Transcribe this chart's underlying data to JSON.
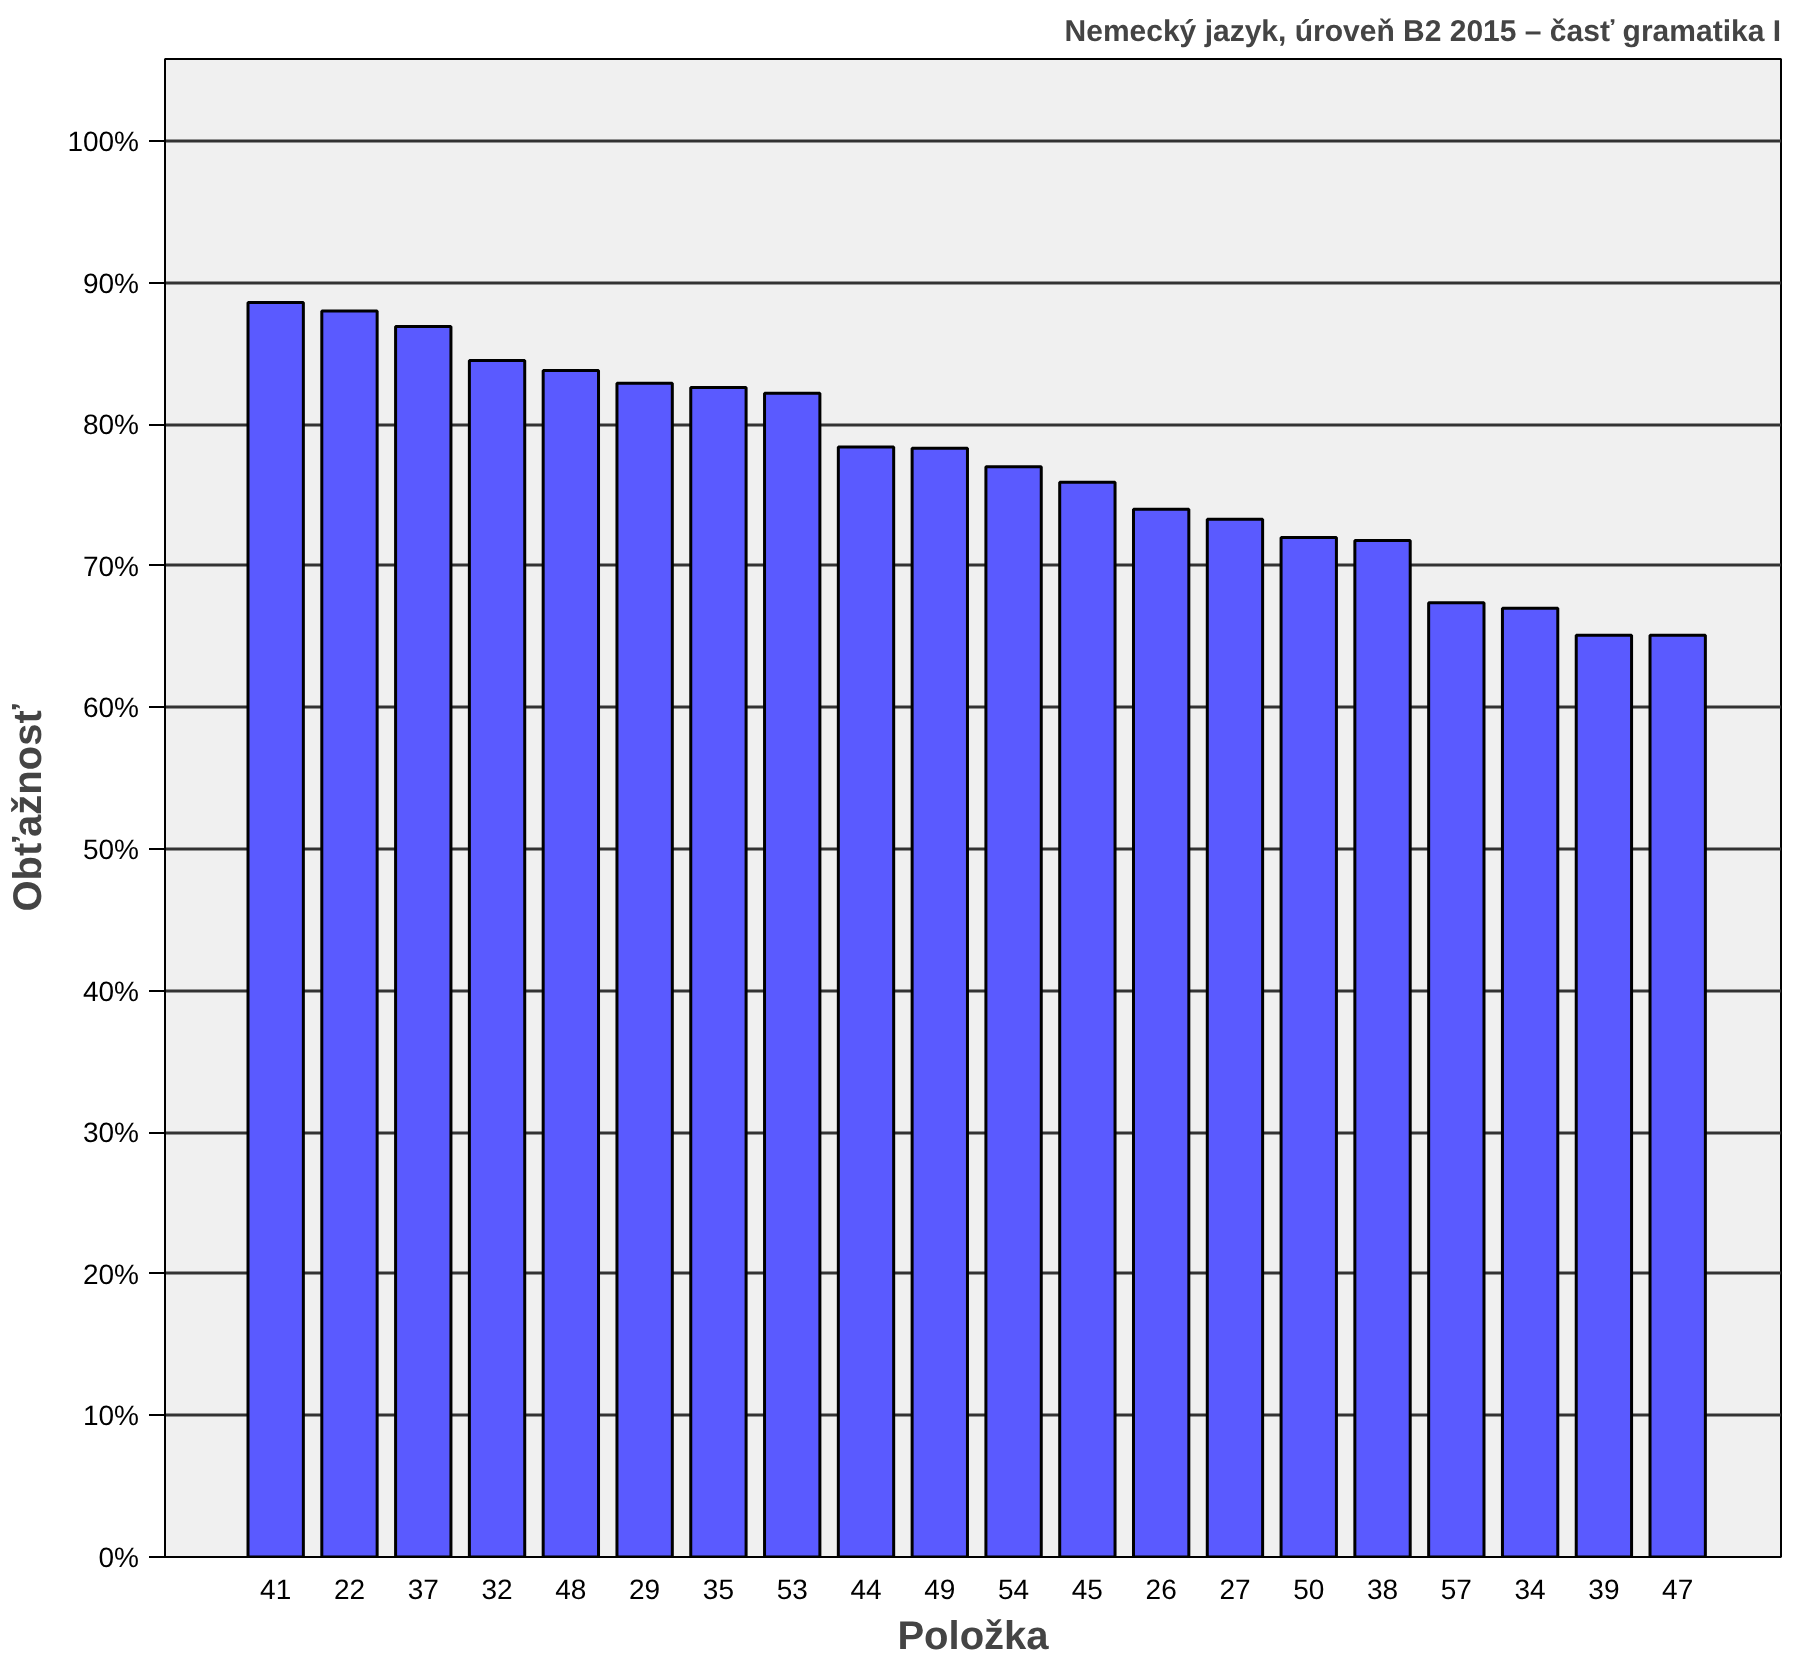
{
  "chart_data": {
    "type": "bar",
    "title": "Nemecký jazyk, úroveň B2 2015 – časť gramatika I",
    "xlabel": "Položka",
    "ylabel": "Obťažnosť",
    "categories": [
      "41",
      "22",
      "37",
      "32",
      "48",
      "29",
      "35",
      "53",
      "44",
      "49",
      "54",
      "45",
      "26",
      "27",
      "50",
      "38",
      "57",
      "34",
      "39",
      "47"
    ],
    "values": [
      88.6,
      88.0,
      86.9,
      84.5,
      83.8,
      82.9,
      82.6,
      82.2,
      78.4,
      78.3,
      77.0,
      75.9,
      74.0,
      73.3,
      72.0,
      71.8,
      67.4,
      67.0,
      65.1,
      65.1
    ],
    "color": "#5a5aff",
    "ylim": [
      0,
      105.8
    ],
    "yticks": [
      {
        "value": 0,
        "label": "0%"
      },
      {
        "value": 10,
        "label": "10%"
      },
      {
        "value": 20,
        "label": "20%"
      },
      {
        "value": 30,
        "label": "30%"
      },
      {
        "value": 40,
        "label": "40%"
      },
      {
        "value": 50,
        "label": "50%"
      },
      {
        "value": 60,
        "label": "60%"
      },
      {
        "value": 70,
        "label": "70%"
      },
      {
        "value": 80,
        "label": "80%"
      },
      {
        "value": 90,
        "label": "90%"
      },
      {
        "value": 100,
        "label": "100%"
      }
    ],
    "grid": "y"
  }
}
